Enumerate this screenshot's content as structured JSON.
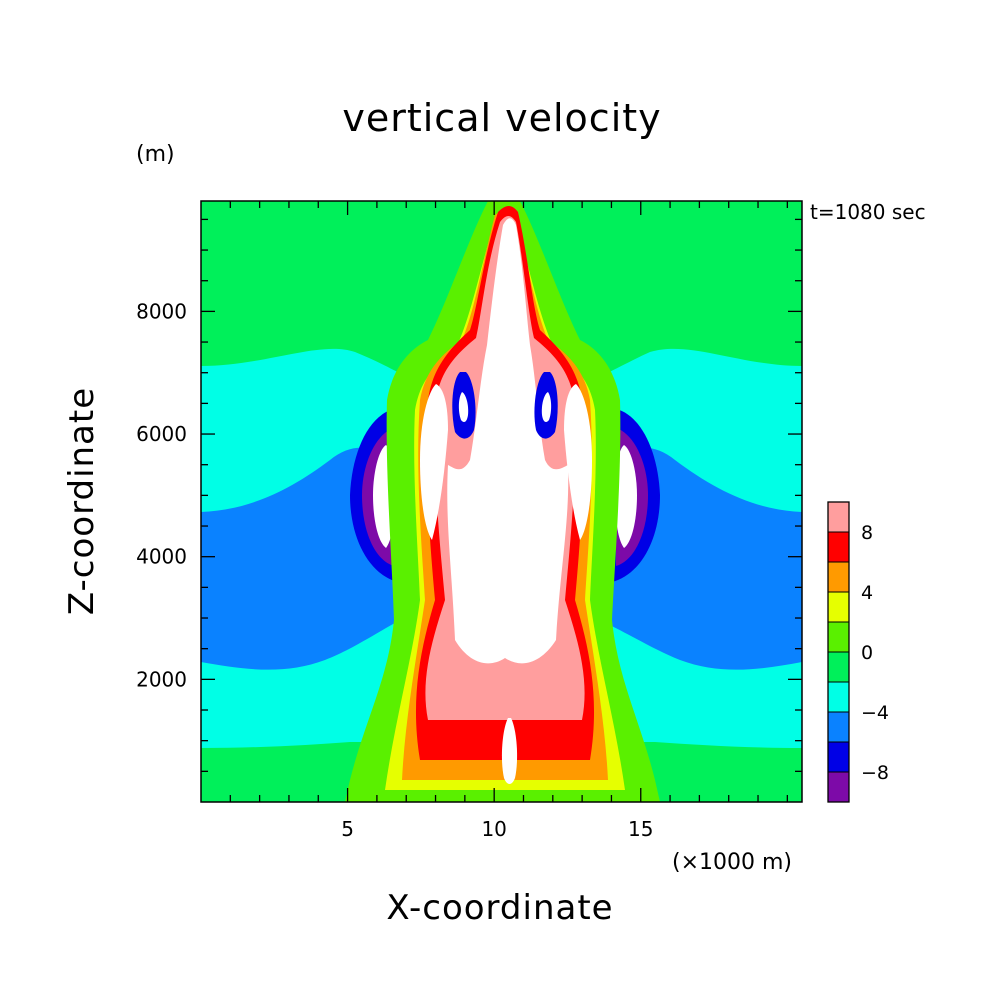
{
  "chart_data": {
    "type": "heatmap",
    "title": "vertical velocity",
    "y_unit_label": "(m)",
    "time_label": "t=1080 sec",
    "xlabel": "X-coordinate",
    "x_unit_label": "(×1000 m)",
    "ylabel": "Z-coordinate",
    "xlim": [
      0,
      20.5
    ],
    "ylim": [
      0,
      9800
    ],
    "x_ticks": [
      5,
      10,
      15
    ],
    "y_ticks": [
      2000,
      4000,
      6000,
      8000
    ],
    "colorbar": {
      "levels": [
        -10,
        -8,
        -6,
        -4,
        -2,
        0,
        2,
        4,
        6,
        8,
        10
      ],
      "labels": [
        -8,
        -4,
        0,
        4,
        8
      ],
      "colors": [
        "#7d0aa8",
        "#0000e6",
        "#0a82ff",
        "#00ffe6",
        "#00f05a",
        "#5af000",
        "#e6ff00",
        "#ff9a00",
        "#ff0000",
        "#ff9e9e"
      ],
      "over_color": "#ffffff"
    }
  }
}
